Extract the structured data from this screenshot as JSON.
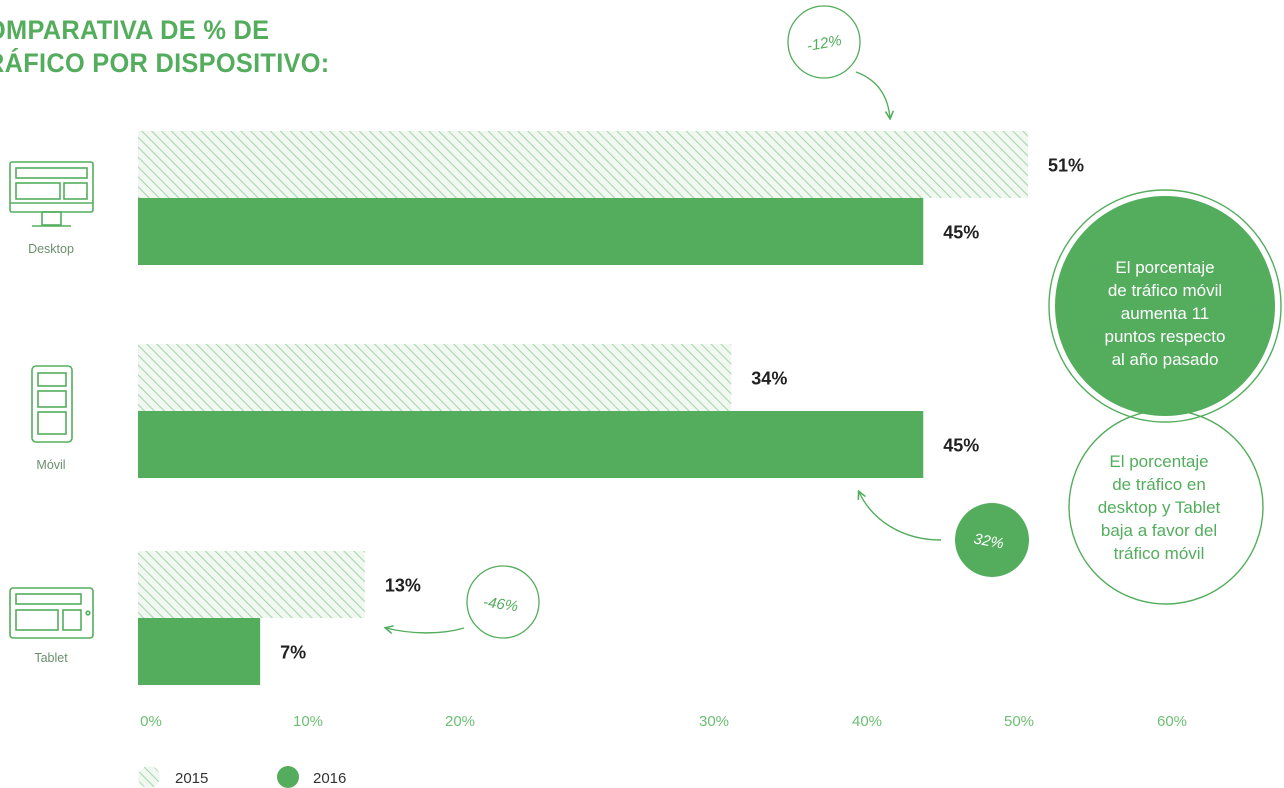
{
  "title": {
    "line1": "OMPARATIVA DE % DE",
    "line2": "RÁFICO POR DISPOSITIVO:"
  },
  "colors": {
    "accent": "#53ad5d",
    "hatch": "#a9d6ae",
    "text": "#222222"
  },
  "chart_data": {
    "type": "bar",
    "orientation": "horizontal",
    "categories": [
      "Desktop",
      "Móvil",
      "Tablet"
    ],
    "series": [
      {
        "name": "2015",
        "values": [
          51,
          34,
          13
        ],
        "labels": [
          "51%",
          "34%",
          "13%"
        ]
      },
      {
        "name": "2016",
        "values": [
          45,
          45,
          7
        ],
        "labels": [
          "45%",
          "45%",
          "7%"
        ]
      }
    ],
    "xlim": [
      0,
      60
    ],
    "xticks": [
      {
        "value": 0,
        "label": "0%"
      },
      {
        "value": 10,
        "label": "10%"
      },
      {
        "value": 20,
        "label": "20%"
      },
      {
        "value": 30,
        "label": "30%"
      },
      {
        "value": 40,
        "label": "40%"
      },
      {
        "value": 50,
        "label": "50%"
      },
      {
        "value": 60,
        "label": "60%"
      }
    ],
    "legend": {
      "placement": "bottom-left",
      "entries": [
        "2015",
        "2016"
      ]
    },
    "annotations": [
      {
        "category": "Desktop",
        "text": "-12%"
      },
      {
        "category": "Móvil",
        "text": "32%"
      },
      {
        "category": "Tablet",
        "text": "-46%"
      }
    ]
  },
  "callouts": {
    "mobile_up": [
      "El porcentaje",
      "de tráfico móvil",
      "aumenta 11",
      "puntos respecto",
      "al año pasado"
    ],
    "desktop_down": [
      "El porcentaje",
      "de tráfico en",
      "desktop y Tablet",
      "baja a favor del",
      "tráfico móvil"
    ]
  },
  "icons": [
    "desktop-icon",
    "mobile-icon",
    "tablet-icon"
  ]
}
